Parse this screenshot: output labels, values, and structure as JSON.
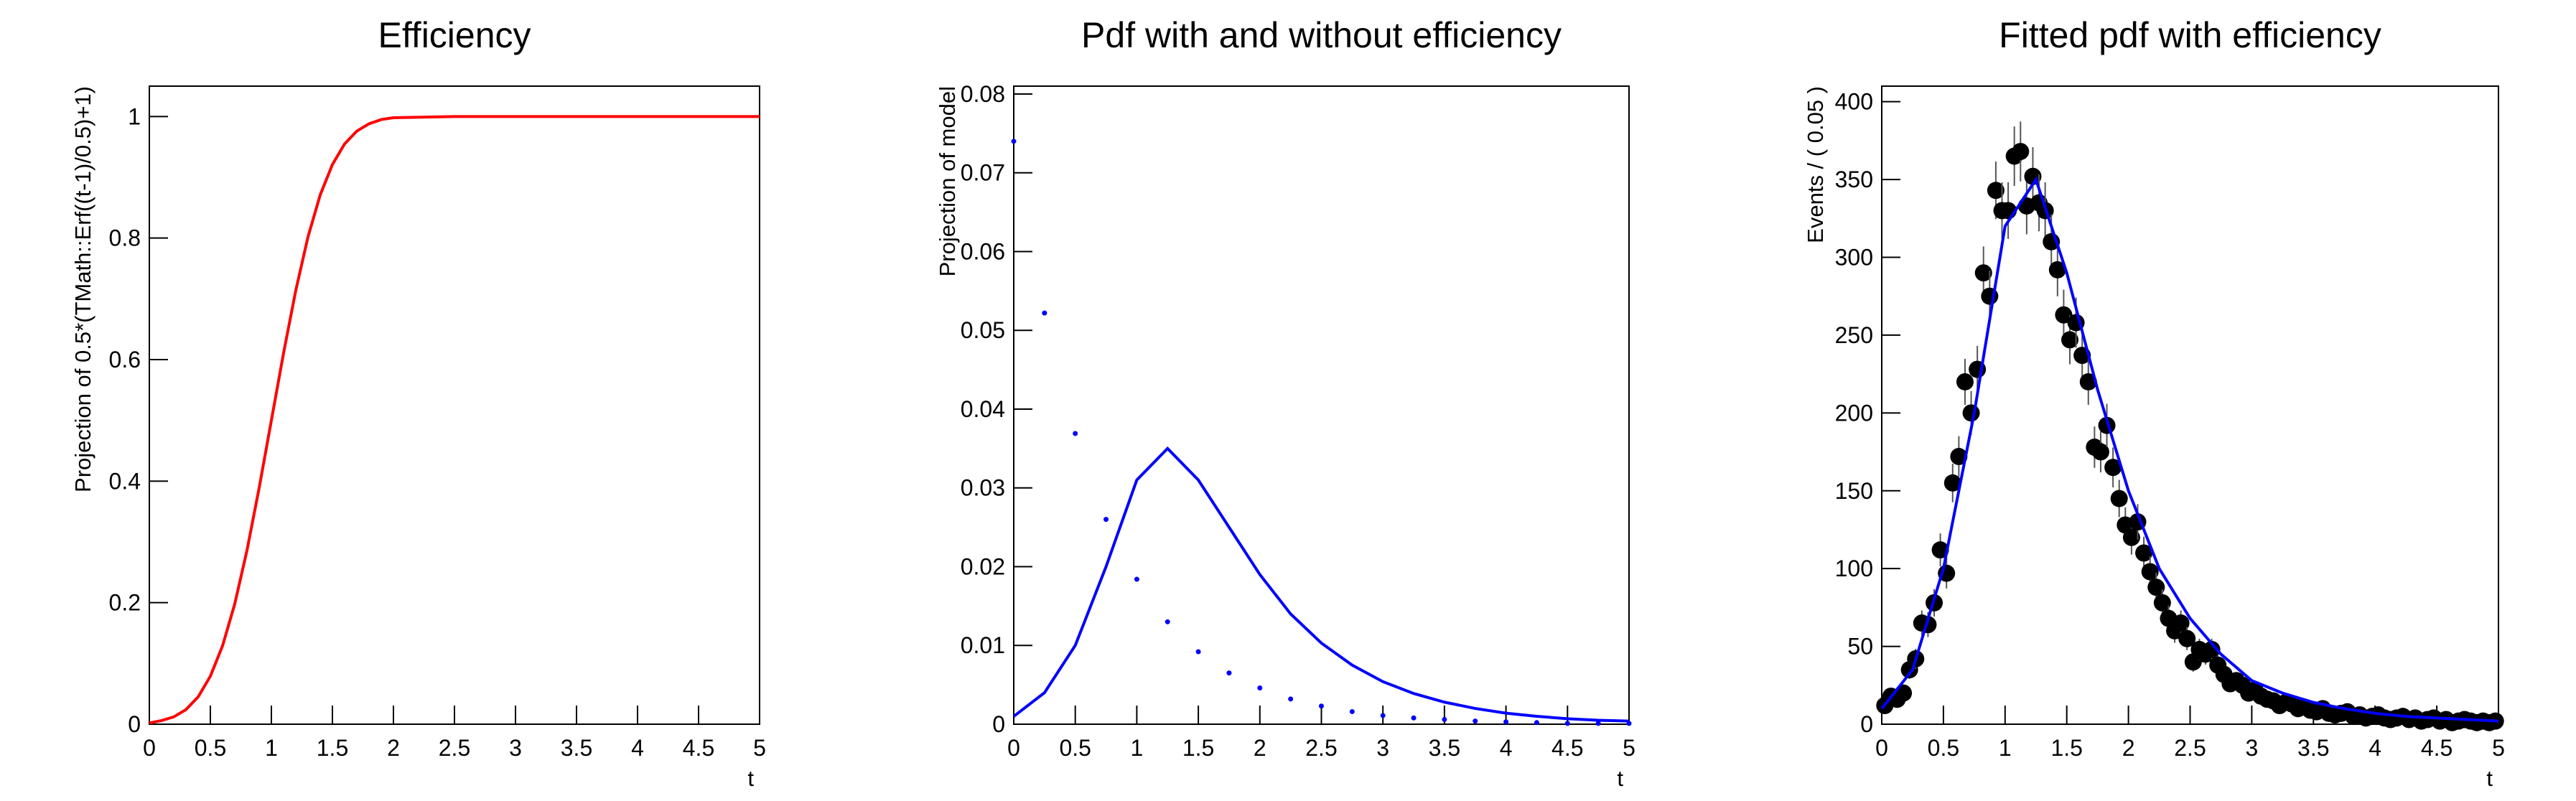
{
  "chart_data": [
    {
      "type": "line",
      "title": "Efficiency",
      "xlabel": "t",
      "ylabel": "Projection of 0.5*(TMath::Erf((t-1)/0.5)+1)",
      "xlim": [
        0,
        5
      ],
      "ylim": [
        0,
        1.05
      ],
      "xticks": [
        0,
        0.5,
        1,
        1.5,
        2,
        2.5,
        3,
        3.5,
        4,
        4.5,
        5
      ],
      "yticks": [
        0,
        0.2,
        0.4,
        0.6,
        0.8,
        1
      ],
      "series": [
        {
          "type": "line",
          "color": "#ff0000",
          "x": [
            0,
            0.1,
            0.2,
            0.3,
            0.4,
            0.5,
            0.6,
            0.7,
            0.8,
            0.9,
            1,
            1.1,
            1.2,
            1.3,
            1.4,
            1.5,
            1.6,
            1.7,
            1.8,
            1.9,
            2,
            2.5,
            3,
            3.5,
            4,
            4.5,
            5
          ],
          "values": [
            0.002,
            0.006,
            0.012,
            0.024,
            0.045,
            0.079,
            0.129,
            0.198,
            0.286,
            0.389,
            0.5,
            0.611,
            0.714,
            0.802,
            0.871,
            0.921,
            0.955,
            0.976,
            0.988,
            0.995,
            0.998,
            1,
            1,
            1,
            1,
            1,
            1
          ]
        }
      ]
    },
    {
      "type": "line",
      "title": "Pdf with and without efficiency",
      "xlabel": "t",
      "ylabel": "Projection of model",
      "xlim": [
        0,
        5
      ],
      "ylim": [
        0,
        0.081
      ],
      "xticks": [
        0,
        0.5,
        1,
        1.5,
        2,
        2.5,
        3,
        3.5,
        4,
        4.5,
        5
      ],
      "yticks": [
        0,
        0.01,
        0.02,
        0.03,
        0.04,
        0.05,
        0.06,
        0.07,
        0.08
      ],
      "series": [
        {
          "type": "line",
          "color": "#0000ff",
          "x": [
            0,
            0.25,
            0.5,
            0.75,
            1,
            1.25,
            1.5,
            1.75,
            2,
            2.25,
            2.5,
            2.75,
            3,
            3.25,
            3.5,
            3.75,
            4,
            4.25,
            4.5,
            4.75,
            5
          ],
          "values": [
            0.001,
            0.004,
            0.01,
            0.02,
            0.031,
            0.035,
            0.031,
            0.025,
            0.019,
            0.014,
            0.0103,
            0.0075,
            0.0054,
            0.0039,
            0.0028,
            0.002,
            0.0014,
            0.001,
            0.0007,
            0.0005,
            0.0004
          ]
        },
        {
          "type": "dots",
          "color": "#0000ff",
          "x": [
            0,
            0.25,
            0.5,
            0.75,
            1,
            1.25,
            1.5,
            1.75,
            2,
            2.25,
            2.5,
            2.75,
            3,
            3.25,
            3.5,
            3.75,
            4,
            4.25,
            4.5,
            4.75,
            5
          ],
          "values": [
            0.074,
            0.0522,
            0.0369,
            0.026,
            0.0184,
            0.013,
            0.0092,
            0.0065,
            0.0046,
            0.0032,
            0.0023,
            0.0016,
            0.0011,
            0.0008,
            0.0006,
            0.0004,
            0.0003,
            0.0002,
            0.0001,
            0.0001,
            0.0001
          ]
        }
      ]
    },
    {
      "type": "scatter",
      "title": "Fitted pdf with efficiency",
      "xlabel": "t",
      "ylabel": "Events / ( 0.05 )",
      "xlim": [
        0,
        5
      ],
      "ylim": [
        0,
        410
      ],
      "xticks": [
        0,
        0.5,
        1,
        1.5,
        2,
        2.5,
        3,
        3.5,
        4,
        4.5,
        5
      ],
      "yticks": [
        0,
        50,
        100,
        150,
        200,
        250,
        300,
        350,
        400
      ],
      "series": [
        {
          "type": "errorbar",
          "color": "#000000",
          "x": [
            0.025,
            0.075,
            0.125,
            0.175,
            0.225,
            0.275,
            0.325,
            0.375,
            0.425,
            0.475,
            0.525,
            0.575,
            0.625,
            0.675,
            0.725,
            0.775,
            0.825,
            0.875,
            0.925,
            0.975,
            1.025,
            1.075,
            1.125,
            1.175,
            1.225,
            1.275,
            1.325,
            1.375,
            1.425,
            1.475,
            1.525,
            1.575,
            1.625,
            1.675,
            1.725,
            1.775,
            1.825,
            1.875,
            1.925,
            1.975,
            2.025,
            2.075,
            2.125,
            2.175,
            2.225,
            2.275,
            2.325,
            2.375,
            2.425,
            2.475,
            2.525,
            2.575,
            2.625,
            2.675,
            2.725,
            2.775,
            2.825,
            2.875,
            2.925,
            2.975,
            3.025,
            3.075,
            3.125,
            3.175,
            3.225,
            3.275,
            3.325,
            3.375,
            3.425,
            3.475,
            3.525,
            3.575,
            3.625,
            3.675,
            3.725,
            3.775,
            3.825,
            3.875,
            3.925,
            3.975,
            4.025,
            4.075,
            4.125,
            4.175,
            4.225,
            4.275,
            4.325,
            4.375,
            4.425,
            4.475,
            4.525,
            4.575,
            4.625,
            4.675,
            4.725,
            4.775,
            4.825,
            4.875,
            4.925,
            4.975
          ],
          "values": [
            12,
            18,
            16,
            20,
            35,
            42,
            65,
            64,
            78,
            112,
            97,
            155,
            172,
            220,
            200,
            228,
            290,
            275,
            343,
            330,
            330,
            365,
            368,
            333,
            352,
            335,
            330,
            310,
            292,
            263,
            247,
            258,
            237,
            220,
            178,
            175,
            192,
            165,
            145,
            128,
            120,
            130,
            110,
            98,
            88,
            78,
            68,
            60,
            65,
            55,
            40,
            48,
            45,
            48,
            38,
            32,
            26,
            28,
            25,
            20,
            22,
            18,
            16,
            15,
            12,
            14,
            13,
            10,
            11,
            9,
            8,
            10,
            7,
            6,
            7,
            8,
            5,
            6,
            4,
            5,
            6,
            4,
            3,
            4,
            5,
            3,
            4,
            2,
            3,
            4,
            2,
            3,
            1,
            2,
            3,
            2,
            1,
            2,
            1,
            2
          ],
          "errors": [
            3.5,
            4.2,
            4,
            4.5,
            5.9,
            6.5,
            8.1,
            8,
            8.8,
            10.6,
            9.8,
            12.4,
            13.1,
            14.8,
            14.1,
            15.1,
            17,
            16.6,
            18.5,
            18.2,
            18.2,
            19.1,
            19.2,
            18.2,
            18.8,
            18.3,
            18.2,
            17.6,
            17.1,
            16.2,
            15.7,
            16.1,
            15.4,
            14.8,
            13.3,
            13.2,
            13.9,
            12.8,
            12,
            11.3,
            11,
            11.4,
            10.5,
            9.9,
            9.4,
            8.8,
            8.2,
            7.7,
            8.1,
            7.4,
            6.3,
            6.9,
            6.7,
            6.9,
            6.2,
            5.7,
            5.1,
            5.3,
            5,
            4.5,
            4.7,
            4.2,
            4,
            3.9,
            3.5,
            3.7,
            3.6,
            3.2,
            3.3,
            3,
            2.8,
            3.2,
            2.6,
            2.4,
            2.6,
            2.8,
            2.2,
            2.4,
            2,
            2.2,
            2.4,
            2,
            1.7,
            2,
            2.2,
            1.7,
            2,
            1.4,
            1.7,
            2,
            1.4,
            1.7,
            1,
            1.4,
            1.7,
            1.4,
            1,
            1.4,
            1,
            1.4
          ]
        },
        {
          "type": "line",
          "color": "#0000ff",
          "x": [
            0,
            0.25,
            0.5,
            0.75,
            1,
            1.25,
            1.5,
            1.75,
            2,
            2.25,
            2.5,
            2.75,
            3,
            3.25,
            3.5,
            3.75,
            4,
            4.25,
            4.5,
            4.75,
            5
          ],
          "values": [
            10,
            35,
            100,
            200,
            320,
            350,
            290,
            215,
            150,
            100,
            68,
            45,
            28,
            20,
            14,
            10,
            7,
            5,
            4,
            3,
            2
          ]
        }
      ]
    }
  ]
}
